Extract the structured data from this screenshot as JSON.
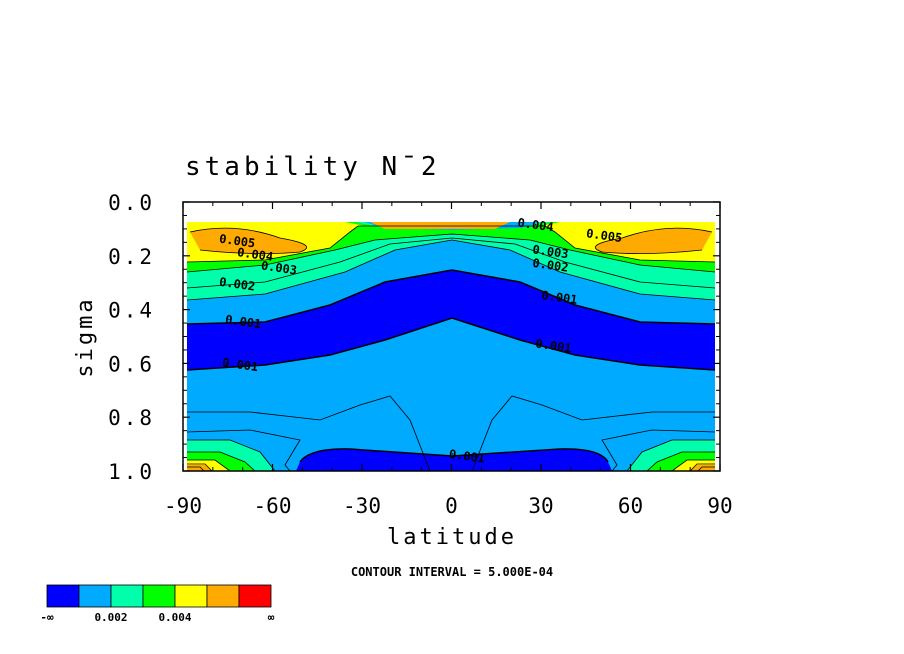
{
  "chart_data": {
    "type": "contour",
    "title": "stability N¯2",
    "xlabel": "latitude",
    "ylabel": "sigma",
    "x_ticks": [
      "-90",
      "-60",
      "-30",
      "0",
      "30",
      "60",
      "90"
    ],
    "y_ticks": [
      "0.0",
      "0.2",
      "0.4",
      "0.6",
      "0.8",
      "1.0"
    ],
    "xlim": [
      -90,
      90
    ],
    "ylim": [
      0.0,
      1.0
    ],
    "y_axis_inverted": true,
    "contour_interval_text": "CONTOUR INTERVAL = 5.000E-04",
    "contour_labels": [
      {
        "text": "0.005",
        "lat": -72,
        "sigma": 0.16
      },
      {
        "text": "0.004",
        "lat": -66,
        "sigma": 0.21
      },
      {
        "text": "0.003",
        "lat": -58,
        "sigma": 0.26
      },
      {
        "text": "0.002",
        "lat": -72,
        "sigma": 0.32
      },
      {
        "text": "0.001",
        "lat": -70,
        "sigma": 0.46
      },
      {
        "text": "0.001",
        "lat": -71,
        "sigma": 0.62
      },
      {
        "text": "0.004",
        "lat": 28,
        "sigma": 0.1
      },
      {
        "text": "0.003",
        "lat": 33,
        "sigma": 0.2
      },
      {
        "text": "0.002",
        "lat": 33,
        "sigma": 0.25
      },
      {
        "text": "0.001",
        "lat": 36,
        "sigma": 0.37
      },
      {
        "text": "0.001",
        "lat": 34,
        "sigma": 0.55
      },
      {
        "text": "0.005",
        "lat": 51,
        "sigma": 0.14
      },
      {
        "text": "0.001",
        "lat": 5,
        "sigma": 0.96
      }
    ],
    "colorbar": {
      "colors": [
        "#0000ff",
        "#00aaff",
        "#00ffaa",
        "#00ff00",
        "#ffff00",
        "#ffaa00",
        "#ff0000"
      ],
      "labels": [
        "-∞",
        "0.002",
        "0.004",
        "∞"
      ]
    }
  }
}
